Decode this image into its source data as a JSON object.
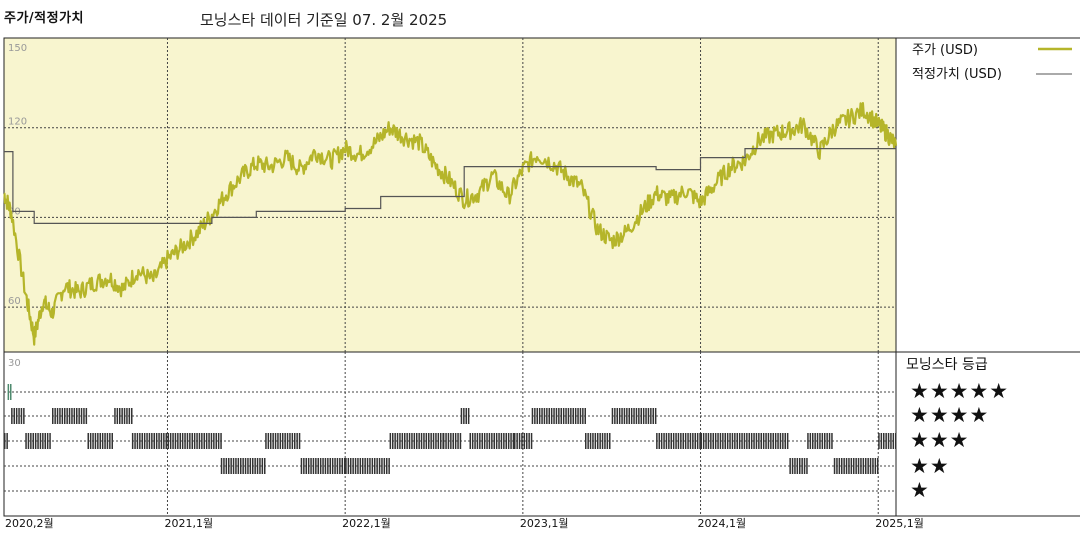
{
  "header": {
    "title": "주가/적정가치",
    "subtitle": "모닝스타 데이터 기준일 07. 2월 2025"
  },
  "legend": {
    "price_label": "주가 (USD)",
    "fair_value_label": "적정가치 (USD)",
    "rating_title": "모닝스타 등급",
    "star_rows": [
      "★★★★★",
      "★★★★",
      "★★★",
      "★★",
      "★"
    ]
  },
  "colors": {
    "price_line": "#b5b52a",
    "fair_value_line": "#555555",
    "plot_bg": "#f8f5cf",
    "rating_bar": "#333333",
    "rating_bar_5star": "#4e8a6e"
  },
  "chart_data": [
    {
      "type": "line",
      "title": "주가/적정가치",
      "y_ticks": [
        60,
        90,
        120,
        150
      ],
      "ylim": [
        45,
        150
      ],
      "x_ticks": [
        "2020,2월",
        "2021,1월",
        "2022,1월",
        "2023,1월",
        "2024,1월",
        "2025,1월"
      ],
      "grid": true,
      "legend_position": "right",
      "series": [
        {
          "name": "주가 (USD)",
          "points": [
            [
              2020.08,
              98
            ],
            [
              2020.12,
              92
            ],
            [
              2020.2,
              65
            ],
            [
              2020.25,
              50
            ],
            [
              2020.3,
              62
            ],
            [
              2020.35,
              58
            ],
            [
              2020.42,
              67
            ],
            [
              2020.5,
              65
            ],
            [
              2020.58,
              68
            ],
            [
              2020.67,
              70
            ],
            [
              2020.75,
              66
            ],
            [
              2020.83,
              72
            ],
            [
              2020.92,
              69
            ],
            [
              2021.0,
              76
            ],
            [
              2021.08,
              80
            ],
            [
              2021.17,
              85
            ],
            [
              2021.25,
              91
            ],
            [
              2021.33,
              98
            ],
            [
              2021.42,
              104
            ],
            [
              2021.5,
              108
            ],
            [
              2021.58,
              107
            ],
            [
              2021.67,
              110
            ],
            [
              2021.75,
              106
            ],
            [
              2021.83,
              112
            ],
            [
              2021.92,
              109
            ],
            [
              2022.0,
              113
            ],
            [
              2022.08,
              111
            ],
            [
              2022.17,
              115
            ],
            [
              2022.25,
              120
            ],
            [
              2022.33,
              117
            ],
            [
              2022.42,
              115
            ],
            [
              2022.5,
              108
            ],
            [
              2022.58,
              103
            ],
            [
              2022.67,
              96
            ],
            [
              2022.75,
              98
            ],
            [
              2022.83,
              104
            ],
            [
              2022.92,
              97
            ],
            [
              2023.0,
              106
            ],
            [
              2023.08,
              111
            ],
            [
              2023.17,
              108
            ],
            [
              2023.25,
              104
            ],
            [
              2023.33,
              100
            ],
            [
              2023.42,
              86
            ],
            [
              2023.5,
              82
            ],
            [
              2023.58,
              85
            ],
            [
              2023.67,
              92
            ],
            [
              2023.75,
              98
            ],
            [
              2023.83,
              96
            ],
            [
              2023.92,
              99
            ],
            [
              2024.0,
              95
            ],
            [
              2024.08,
              101
            ],
            [
              2024.17,
              107
            ],
            [
              2024.25,
              109
            ],
            [
              2024.33,
              116
            ],
            [
              2024.42,
              118
            ],
            [
              2024.5,
              119
            ],
            [
              2024.58,
              121
            ],
            [
              2024.67,
              112
            ],
            [
              2024.75,
              120
            ],
            [
              2024.83,
              123
            ],
            [
              2024.92,
              126
            ],
            [
              2025.0,
              121
            ],
            [
              2025.05,
              118
            ],
            [
              2025.1,
              114
            ]
          ]
        },
        {
          "name": "적정가치 (USD)",
          "steps": [
            [
              2020.08,
              112
            ],
            [
              2020.13,
              92
            ],
            [
              2020.25,
              88
            ],
            [
              2021.0,
              88
            ],
            [
              2021.25,
              90
            ],
            [
              2021.5,
              92
            ],
            [
              2022.0,
              93
            ],
            [
              2022.2,
              97
            ],
            [
              2022.58,
              97
            ],
            [
              2022.67,
              107
            ],
            [
              2023.0,
              107
            ],
            [
              2023.25,
              107
            ],
            [
              2023.75,
              106
            ],
            [
              2024.0,
              110
            ],
            [
              2024.25,
              113
            ],
            [
              2025.1,
              113
            ]
          ]
        }
      ]
    },
    {
      "type": "rating_timeline",
      "title": "모닝스타 등급",
      "rows": [
        "★★★★★",
        "★★★★",
        "★★★",
        "★★",
        "★"
      ],
      "ratings": [
        [
          2020.08,
          3
        ],
        [
          2020.1,
          5
        ],
        [
          2020.12,
          4
        ],
        [
          2020.2,
          3
        ],
        [
          2020.35,
          4
        ],
        [
          2020.55,
          3
        ],
        [
          2020.7,
          4
        ],
        [
          2020.8,
          3
        ],
        [
          2021.0,
          3
        ],
        [
          2021.3,
          2
        ],
        [
          2021.55,
          3
        ],
        [
          2021.75,
          2
        ],
        [
          2022.0,
          2
        ],
        [
          2022.25,
          3
        ],
        [
          2022.55,
          3
        ],
        [
          2022.65,
          4
        ],
        [
          2022.7,
          3
        ],
        [
          2022.95,
          3
        ],
        [
          2023.05,
          4
        ],
        [
          2023.35,
          3
        ],
        [
          2023.5,
          4
        ],
        [
          2023.75,
          3
        ],
        [
          2024.0,
          3
        ],
        [
          2024.5,
          2
        ],
        [
          2024.6,
          3
        ],
        [
          2024.75,
          2
        ],
        [
          2025.0,
          3
        ]
      ]
    }
  ]
}
